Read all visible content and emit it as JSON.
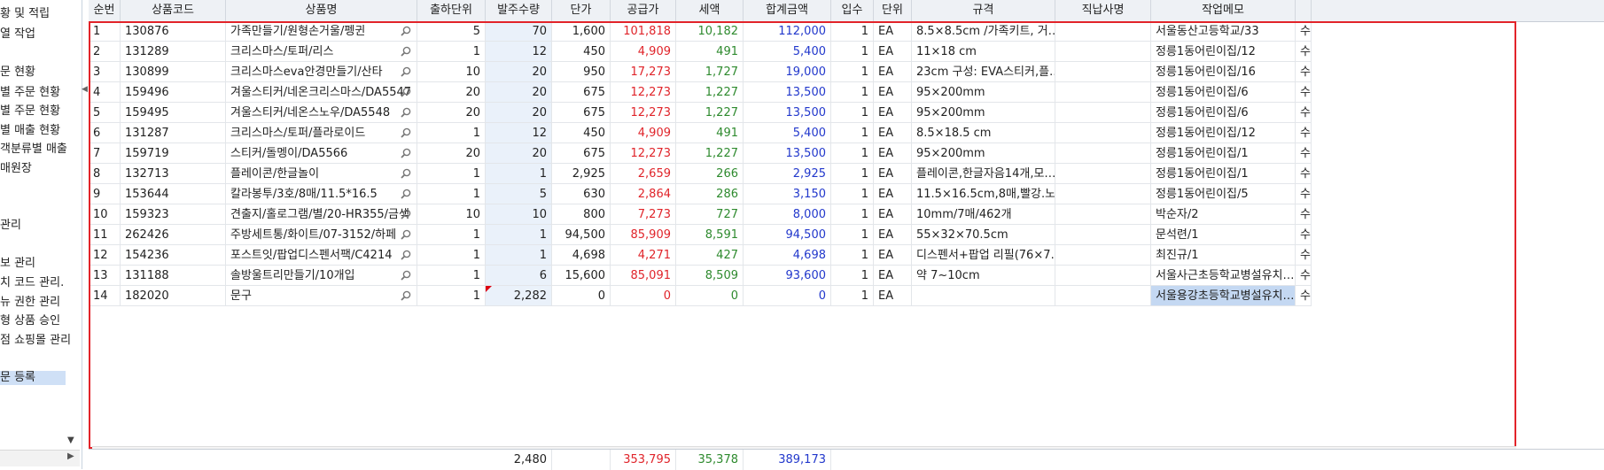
{
  "sidebar": {
    "items": [
      {
        "label": "황 및 적립"
      },
      {
        "label": "열 작업"
      },
      {
        "label": "문 현황"
      },
      {
        "label": "별 주문 현황"
      },
      {
        "label": "별 주문 현황"
      },
      {
        "label": "별 매출 현황"
      },
      {
        "label": "객분류별 매출"
      },
      {
        "label": "매원장"
      },
      {
        "label": "관리"
      },
      {
        "label": "보 관리"
      },
      {
        "label": "치 코드 관리."
      },
      {
        "label": "뉴 권한 관리"
      },
      {
        "label": "형 상품 승인"
      },
      {
        "label": "점 쇼핑몰 관리"
      },
      {
        "label": "문 등록"
      }
    ]
  },
  "columns": [
    "순번",
    "상품코드",
    "상품명",
    "출하단위",
    "발주수량",
    "단가",
    "공급가",
    "세액",
    "합계금액",
    "입수",
    "단위",
    "규격",
    "직납사명",
    "작업메모"
  ],
  "rows": [
    {
      "no": "1",
      "code": "130876",
      "name": "가족만들기/원형손거울/펭귄",
      "unit_ship": "5",
      "order_qty": "70",
      "price": "1,600",
      "supply": "101,818",
      "tax": "10,182",
      "total": "112,000",
      "pack": "1",
      "unit": "EA",
      "spec": "8.5×8.5cm /가족키트, 거…",
      "vendor": "",
      "memo": "서울동산고등학교/33",
      "extra": "수"
    },
    {
      "no": "2",
      "code": "131289",
      "name": "크리스마스/토퍼/리스",
      "unit_ship": "1",
      "order_qty": "12",
      "price": "450",
      "supply": "4,909",
      "tax": "491",
      "total": "5,400",
      "pack": "1",
      "unit": "EA",
      "spec": "11×18 cm",
      "vendor": "",
      "memo": "정릉1동어린이집/12",
      "extra": "수"
    },
    {
      "no": "3",
      "code": "130899",
      "name": "크리스마스eva안경만들기/산타",
      "unit_ship": "10",
      "order_qty": "20",
      "price": "950",
      "supply": "17,273",
      "tax": "1,727",
      "total": "19,000",
      "pack": "1",
      "unit": "EA",
      "spec": "23cm 구성: EVA스티커,플…",
      "vendor": "",
      "memo": "정릉1동어린이집/16",
      "extra": "수"
    },
    {
      "no": "4",
      "code": "159496",
      "name": "겨울스티커/네온크리스마스/DA5547",
      "unit_ship": "20",
      "order_qty": "20",
      "price": "675",
      "supply": "12,273",
      "tax": "1,227",
      "total": "13,500",
      "pack": "1",
      "unit": "EA",
      "spec": "95×200mm",
      "vendor": "",
      "memo": "정릉1동어린이집/6",
      "extra": "수"
    },
    {
      "no": "5",
      "code": "159495",
      "name": "겨울스티커/네온스노우/DA5548",
      "unit_ship": "20",
      "order_qty": "20",
      "price": "675",
      "supply": "12,273",
      "tax": "1,227",
      "total": "13,500",
      "pack": "1",
      "unit": "EA",
      "spec": "95×200mm",
      "vendor": "",
      "memo": "정릉1동어린이집/6",
      "extra": "수"
    },
    {
      "no": "6",
      "code": "131287",
      "name": "크리스마스/토퍼/플라로이드",
      "unit_ship": "1",
      "order_qty": "12",
      "price": "450",
      "supply": "4,909",
      "tax": "491",
      "total": "5,400",
      "pack": "1",
      "unit": "EA",
      "spec": "8.5×18.5 cm",
      "vendor": "",
      "memo": "정릉1동어린이집/12",
      "extra": "수"
    },
    {
      "no": "7",
      "code": "159719",
      "name": "스티커/돌멩이/DA5566",
      "unit_ship": "20",
      "order_qty": "20",
      "price": "675",
      "supply": "12,273",
      "tax": "1,227",
      "total": "13,500",
      "pack": "1",
      "unit": "EA",
      "spec": "95×200mm",
      "vendor": "",
      "memo": "정릉1동어린이집/1",
      "extra": "수"
    },
    {
      "no": "8",
      "code": "132713",
      "name": "플레이콘/한글놀이",
      "unit_ship": "1",
      "order_qty": "1",
      "price": "2,925",
      "supply": "2,659",
      "tax": "266",
      "total": "2,925",
      "pack": "1",
      "unit": "EA",
      "spec": "플레이콘,한글자음14개,모…",
      "vendor": "",
      "memo": "정릉1동어린이집/1",
      "extra": "수"
    },
    {
      "no": "9",
      "code": "153644",
      "name": "칼라봉투/3호/8매/11.5*16.5",
      "unit_ship": "1",
      "order_qty": "5",
      "price": "630",
      "supply": "2,864",
      "tax": "286",
      "total": "3,150",
      "pack": "1",
      "unit": "EA",
      "spec": "11.5×16.5cm,8매,빨강.노…",
      "vendor": "",
      "memo": "정릉1동어린이집/5",
      "extra": "수"
    },
    {
      "no": "10",
      "code": "159323",
      "name": "견출지/홀로그램/별/20-HR355/금색",
      "unit_ship": "10",
      "order_qty": "10",
      "price": "800",
      "supply": "7,273",
      "tax": "727",
      "total": "8,000",
      "pack": "1",
      "unit": "EA",
      "spec": "10mm/7매/462개",
      "vendor": "",
      "memo": "박순자/2",
      "extra": "수"
    },
    {
      "no": "11",
      "code": "262426",
      "name": "주방세트통/화이트/07-3152/하페",
      "unit_ship": "1",
      "order_qty": "1",
      "price": "94,500",
      "supply": "85,909",
      "tax": "8,591",
      "total": "94,500",
      "pack": "1",
      "unit": "EA",
      "spec": "55×32×70.5cm",
      "vendor": "",
      "memo": "문석련/1",
      "extra": "수"
    },
    {
      "no": "12",
      "code": "154236",
      "name": "포스트잇/팝업디스펜서팩/C4214",
      "unit_ship": "1",
      "order_qty": "1",
      "price": "4,698",
      "supply": "4,271",
      "tax": "427",
      "total": "4,698",
      "pack": "1",
      "unit": "EA",
      "spec": "디스펜서+팝업 리필(76×7…",
      "vendor": "",
      "memo": "최진규/1",
      "extra": "수"
    },
    {
      "no": "13",
      "code": "131188",
      "name": "솔방울트리만들기/10개입",
      "unit_ship": "1",
      "order_qty": "6",
      "price": "15,600",
      "supply": "85,091",
      "tax": "8,509",
      "total": "93,600",
      "pack": "1",
      "unit": "EA",
      "spec": "약 7~10cm",
      "vendor": "",
      "memo": "서울사근초등학교병설유치…",
      "extra": "수"
    },
    {
      "no": "14",
      "code": "182020",
      "name": "문구",
      "unit_ship": "1",
      "order_qty": "2,282",
      "price": "0",
      "supply": "0",
      "tax": "0",
      "total": "0",
      "pack": "1",
      "unit": "EA",
      "spec": "",
      "vendor": "",
      "memo": "서울용강초등학교병설유치…",
      "extra": "수"
    }
  ],
  "totals": {
    "order_qty": "2,480",
    "supply": "353,795",
    "tax": "35,378",
    "total": "389,173"
  },
  "colors": {
    "supply": "#e0242a",
    "tax": "#2e8a2e",
    "total": "#2238cc",
    "frame": "#e2242a"
  }
}
